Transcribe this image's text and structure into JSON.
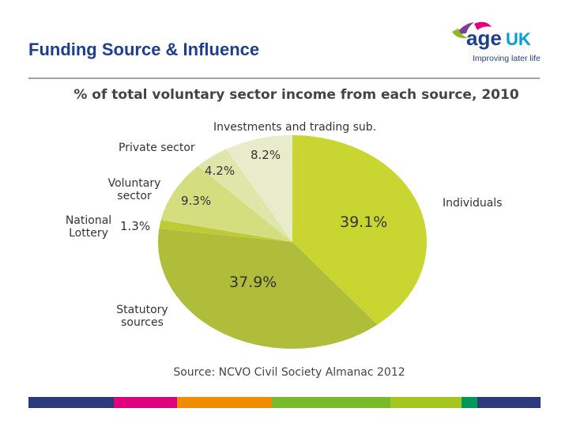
{
  "header": {
    "title": "Funding Source & Influence",
    "logo_text": "age",
    "logo_uk": "UK",
    "tagline": "Improving later life"
  },
  "chart_data": {
    "type": "pie",
    "title": "% of total voluntary sector income from each source, 2010",
    "source": "Source: NCVO Civil Society Almanac 2012",
    "categories": [
      "Individuals",
      "Statutory sources",
      "National Lottery",
      "Voluntary sector",
      "Private sector",
      "Investments and trading sub."
    ],
    "values": [
      39.1,
      37.9,
      1.3,
      9.3,
      4.2,
      8.2
    ],
    "value_labels": [
      "39.1%",
      "37.9%",
      "1.3%",
      "9.3%",
      "4.2%",
      "8.2%"
    ],
    "colors": [
      "#c9d631",
      "#b0bd3b",
      "#bccb36",
      "#d5de7f",
      "#dfe6aa",
      "#e9ecca"
    ]
  }
}
